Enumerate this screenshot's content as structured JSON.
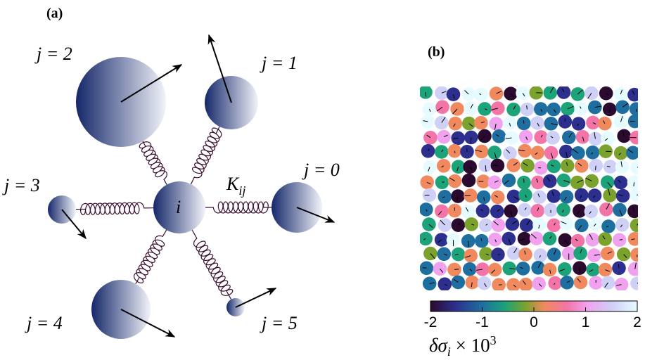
{
  "panel_a": {
    "label": "(a)",
    "center_label": "i",
    "spring_label": {
      "main": "K",
      "sub": "ij"
    },
    "neighbors": [
      {
        "label": "j = 0"
      },
      {
        "label": "j = 1"
      },
      {
        "label": "j = 2"
      },
      {
        "label": "j = 3"
      },
      {
        "label": "j = 4"
      },
      {
        "label": "j = 5"
      }
    ]
  },
  "panel_b": {
    "label": "(b)",
    "colorbar": {
      "range": [
        -2,
        2
      ],
      "ticks": [
        -2,
        -1,
        0,
        1,
        2
      ],
      "title": {
        "symbol": "δσ",
        "sub": "i",
        "mid": " × 10",
        "sup": "3"
      }
    }
  }
}
